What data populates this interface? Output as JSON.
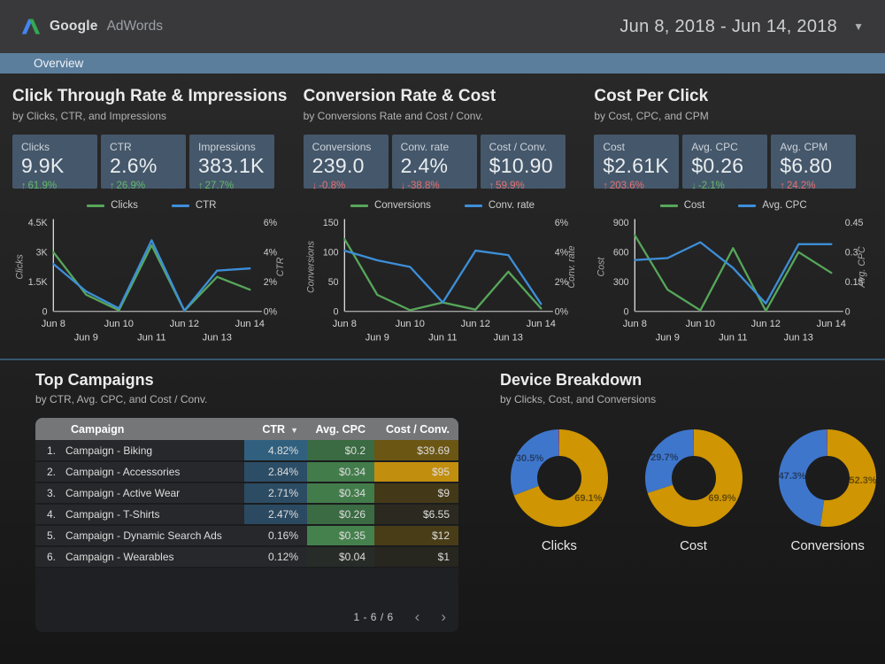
{
  "header": {
    "logo_google": "Google",
    "logo_product": "AdWords",
    "date_range": "Jun 8, 2018 - Jun 14, 2018"
  },
  "nav": {
    "tab": "Overview"
  },
  "colors": {
    "line_green": "#57a65a",
    "line_blue": "#3d8ed8",
    "donut_gold": "#cf9502",
    "donut_blue": "#3e76cc",
    "donut_red": "#c6402f",
    "accent_bar": "#5b7e9d",
    "card_bg": "#45576a",
    "delta_good": "#63b96b",
    "delta_bad": "#e5716f"
  },
  "sections": [
    {
      "title": "Click Through Rate & Impressions",
      "subtitle": "by Clicks, CTR, and Impressions",
      "cards": [
        {
          "label": "Clicks",
          "value": "9.9K",
          "delta": "61.9%",
          "direction": "up",
          "sentiment": "good"
        },
        {
          "label": "CTR",
          "value": "2.6%",
          "delta": "26.9%",
          "direction": "up",
          "sentiment": "good"
        },
        {
          "label": "Impressions",
          "value": "383.1K",
          "delta": "27.7%",
          "direction": "up",
          "sentiment": "good"
        }
      ]
    },
    {
      "title": "Conversion Rate & Cost",
      "subtitle": "by Conversions Rate and Cost / Conv.",
      "cards": [
        {
          "label": "Conversions",
          "value": "239.0",
          "delta": "-0.8%",
          "direction": "down",
          "sentiment": "bad"
        },
        {
          "label": "Conv. rate",
          "value": "2.4%",
          "delta": "-38.8%",
          "direction": "down",
          "sentiment": "bad"
        },
        {
          "label": "Cost / Conv.",
          "value": "$10.90",
          "delta": "59.9%",
          "direction": "up",
          "sentiment": "bad"
        }
      ]
    },
    {
      "title": "Cost Per Click",
      "subtitle": "by Cost, CPC, and CPM",
      "cards": [
        {
          "label": "Cost",
          "value": "$2.61K",
          "delta": "203.6%",
          "direction": "up",
          "sentiment": "bad"
        },
        {
          "label": "Avg. CPC",
          "value": "$0.26",
          "delta": "-2.1%",
          "direction": "down",
          "sentiment": "good"
        },
        {
          "label": "Avg. CPM",
          "value": "$6.80",
          "delta": "24.2%",
          "direction": "up",
          "sentiment": "bad"
        }
      ]
    }
  ],
  "chart_data": [
    {
      "type": "line",
      "categories": [
        "Jun 8",
        "Jun 9",
        "Jun 10",
        "Jun 11",
        "Jun 12",
        "Jun 13",
        "Jun 14"
      ],
      "series": [
        {
          "name": "Clicks",
          "axis": "left",
          "color": "#57a65a",
          "values": [
            3000,
            850,
            50,
            3350,
            30,
            1750,
            1100
          ]
        },
        {
          "name": "CTR",
          "axis": "right",
          "color": "#3d8ed8",
          "values": [
            3.2,
            1.35,
            0.2,
            4.8,
            0.05,
            2.75,
            2.9
          ]
        }
      ],
      "left_axis": {
        "title": "Clicks",
        "max": 4500,
        "ticks": [
          "0",
          "1.5K",
          "3K",
          "4.5K"
        ]
      },
      "right_axis": {
        "title": "CTR",
        "max": 6,
        "ticks": [
          "0%",
          "2%",
          "4%",
          "6%"
        ]
      },
      "legend_position": "top",
      "grid": false
    },
    {
      "type": "line",
      "categories": [
        "Jun 8",
        "Jun 9",
        "Jun 10",
        "Jun 11",
        "Jun 12",
        "Jun 13",
        "Jun 14"
      ],
      "series": [
        {
          "name": "Conversions",
          "axis": "left",
          "color": "#57a65a",
          "values": [
            122,
            28,
            2,
            15,
            3,
            67,
            5
          ]
        },
        {
          "name": "Conv. rate",
          "axis": "right",
          "color": "#3d8ed8",
          "values": [
            4.1,
            3.45,
            3.0,
            0.6,
            4.1,
            3.8,
            0.5
          ]
        }
      ],
      "left_axis": {
        "title": "Conversions",
        "max": 150,
        "ticks": [
          "0",
          "50",
          "100",
          "150"
        ]
      },
      "right_axis": {
        "title": "Conv. rate",
        "max": 6,
        "ticks": [
          "0%",
          "2%",
          "4%",
          "6%"
        ]
      },
      "legend_position": "top",
      "grid": false
    },
    {
      "type": "line",
      "categories": [
        "Jun 8",
        "Jun 9",
        "Jun 10",
        "Jun 11",
        "Jun 12",
        "Jun 13",
        "Jun 14"
      ],
      "series": [
        {
          "name": "Cost",
          "axis": "left",
          "color": "#57a65a",
          "values": [
            770,
            220,
            10,
            640,
            5,
            600,
            390
          ]
        },
        {
          "name": "Avg. CPC",
          "axis": "right",
          "color": "#3d8ed8",
          "values": [
            0.26,
            0.27,
            0.35,
            0.22,
            0.04,
            0.34,
            0.34
          ]
        }
      ],
      "left_axis": {
        "title": "Cost",
        "max": 900,
        "ticks": [
          "0",
          "300",
          "600",
          "900"
        ]
      },
      "right_axis": {
        "title": "Avg. CPC",
        "max": 0.45,
        "ticks": [
          "0",
          "0.15",
          "0.3",
          "0.45"
        ]
      },
      "legend_position": "top",
      "grid": false
    },
    {
      "type": "pie",
      "title": "Clicks",
      "slices": [
        {
          "label": "69.1%",
          "value": 69.1,
          "color": "#cf9502"
        },
        {
          "label": "30.5%",
          "value": 30.5,
          "color": "#3e76cc"
        },
        {
          "label": "",
          "value": 0.4,
          "color": "#c6402f"
        }
      ]
    },
    {
      "type": "pie",
      "title": "Cost",
      "slices": [
        {
          "label": "69.9%",
          "value": 69.9,
          "color": "#cf9502"
        },
        {
          "label": "29.7%",
          "value": 29.7,
          "color": "#3e76cc"
        },
        {
          "label": "",
          "value": 0.4,
          "color": "#c6402f"
        }
      ]
    },
    {
      "type": "pie",
      "title": "Conversions",
      "slices": [
        {
          "label": "52.3%",
          "value": 52.3,
          "color": "#cf9502"
        },
        {
          "label": "47.3%",
          "value": 47.3,
          "color": "#3e76cc"
        },
        {
          "label": "",
          "value": 0.4,
          "color": "#c6402f"
        }
      ]
    }
  ],
  "campaigns": {
    "title": "Top Campaigns",
    "subtitle": "by CTR, Avg. CPC, and Cost / Conv.",
    "columns": [
      "Campaign",
      "CTR",
      "Avg. CPC",
      "Cost / Conv."
    ],
    "sort_column": "CTR",
    "rows": [
      {
        "rank": "1.",
        "name": "Campaign - Biking",
        "ctr": "4.82%",
        "ctr_bg": "#31607f",
        "cpc": "$0.2",
        "cpc_bg": "#3a6b42",
        "cost": "$39.69",
        "cost_bg": "#6b5614"
      },
      {
        "rank": "2.",
        "name": "Campaign - Accessories",
        "ctr": "2.84%",
        "ctr_bg": "#2c4d66",
        "cpc": "$0.34",
        "cpc_bg": "#437c4b",
        "cost": "$95",
        "cost_bg": "#c28e0e"
      },
      {
        "rank": "3.",
        "name": "Campaign - Active Wear",
        "ctr": "2.71%",
        "ctr_bg": "#2c4c64",
        "cpc": "$0.34",
        "cpc_bg": "#437c4b",
        "cost": "$9",
        "cost_bg": "#433918"
      },
      {
        "rank": "4.",
        "name": "Campaign - T-Shirts",
        "ctr": "2.47%",
        "ctr_bg": "#2b4a62",
        "cpc": "$0.26",
        "cpc_bg": "#3a6b42",
        "cost": "$6.55",
        "cost_bg": "#2c2a20"
      },
      {
        "rank": "5.",
        "name": "Campaign - Dynamic Search Ads",
        "ctr": "0.16%",
        "ctr_bg": "",
        "cpc": "$0.35",
        "cpc_bg": "#45814d",
        "cost": "$12",
        "cost_bg": "#493d18"
      },
      {
        "rank": "6.",
        "name": "Campaign - Wearables",
        "ctr": "0.12%",
        "ctr_bg": "",
        "cpc": "$0.04",
        "cpc_bg": "#272c28",
        "cost": "$1",
        "cost_bg": "#27261f"
      }
    ],
    "pagination": "1 - 6 / 6"
  },
  "devices": {
    "title": "Device Breakdown",
    "subtitle": "by Clicks, Cost, and Conversions"
  }
}
